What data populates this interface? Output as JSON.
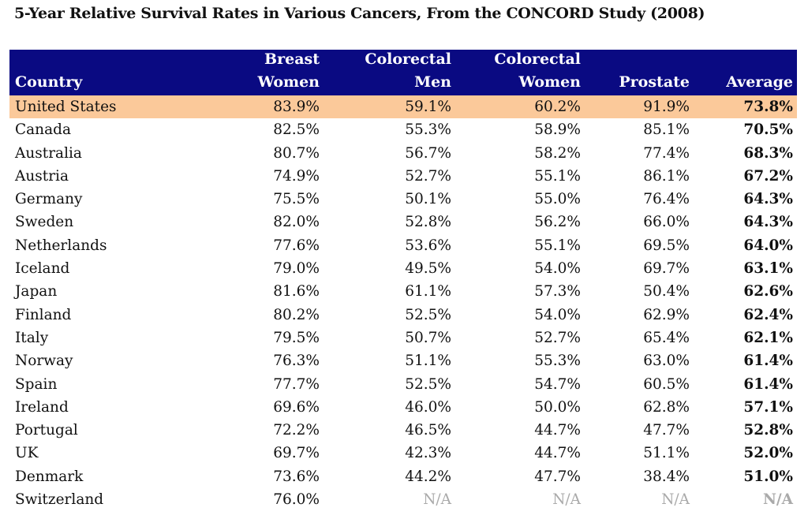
{
  "chart_data": {
    "type": "table",
    "title": "5-Year Relative Survival Rates in Various Cancers, From the CONCORD Study (2008)",
    "columns": [
      [
        "Country"
      ],
      [
        "Breast",
        "Women"
      ],
      [
        "Colorectal",
        "Men"
      ],
      [
        "Colorectal",
        "Women"
      ],
      [
        "Prostate"
      ],
      [
        "Average"
      ]
    ],
    "highlight_color": "#fbc99a",
    "header_color": "#0a0a82",
    "rows": [
      [
        "United States",
        "83.9%",
        "59.1%",
        "60.2%",
        "91.9%",
        "73.8%"
      ],
      [
        "Canada",
        "82.5%",
        "55.3%",
        "58.9%",
        "85.1%",
        "70.5%"
      ],
      [
        "Australia",
        "80.7%",
        "56.7%",
        "58.2%",
        "77.4%",
        "68.3%"
      ],
      [
        "Austria",
        "74.9%",
        "52.7%",
        "55.1%",
        "86.1%",
        "67.2%"
      ],
      [
        "Germany",
        "75.5%",
        "50.1%",
        "55.0%",
        "76.4%",
        "64.3%"
      ],
      [
        "Sweden",
        "82.0%",
        "52.8%",
        "56.2%",
        "66.0%",
        "64.3%"
      ],
      [
        "Netherlands",
        "77.6%",
        "53.6%",
        "55.1%",
        "69.5%",
        "64.0%"
      ],
      [
        "Iceland",
        "79.0%",
        "49.5%",
        "54.0%",
        "69.7%",
        "63.1%"
      ],
      [
        "Japan",
        "81.6%",
        "61.1%",
        "57.3%",
        "50.4%",
        "62.6%"
      ],
      [
        "Finland",
        "80.2%",
        "52.5%",
        "54.0%",
        "62.9%",
        "62.4%"
      ],
      [
        "Italy",
        "79.5%",
        "50.7%",
        "52.7%",
        "65.4%",
        "62.1%"
      ],
      [
        "Norway",
        "76.3%",
        "51.1%",
        "55.3%",
        "63.0%",
        "61.4%"
      ],
      [
        "Spain",
        "77.7%",
        "52.5%",
        "54.7%",
        "60.5%",
        "61.4%"
      ],
      [
        "Ireland",
        "69.6%",
        "46.0%",
        "50.0%",
        "62.8%",
        "57.1%"
      ],
      [
        "Portugal",
        "72.2%",
        "46.5%",
        "44.7%",
        "47.7%",
        "52.8%"
      ],
      [
        "UK",
        "69.7%",
        "42.3%",
        "44.7%",
        "51.1%",
        "52.0%"
      ],
      [
        "Denmark",
        "73.6%",
        "44.2%",
        "47.7%",
        "38.4%",
        "51.0%"
      ],
      [
        "Switzerland",
        "76.0%",
        "N/A",
        "N/A",
        "N/A",
        "N/A"
      ]
    ]
  }
}
